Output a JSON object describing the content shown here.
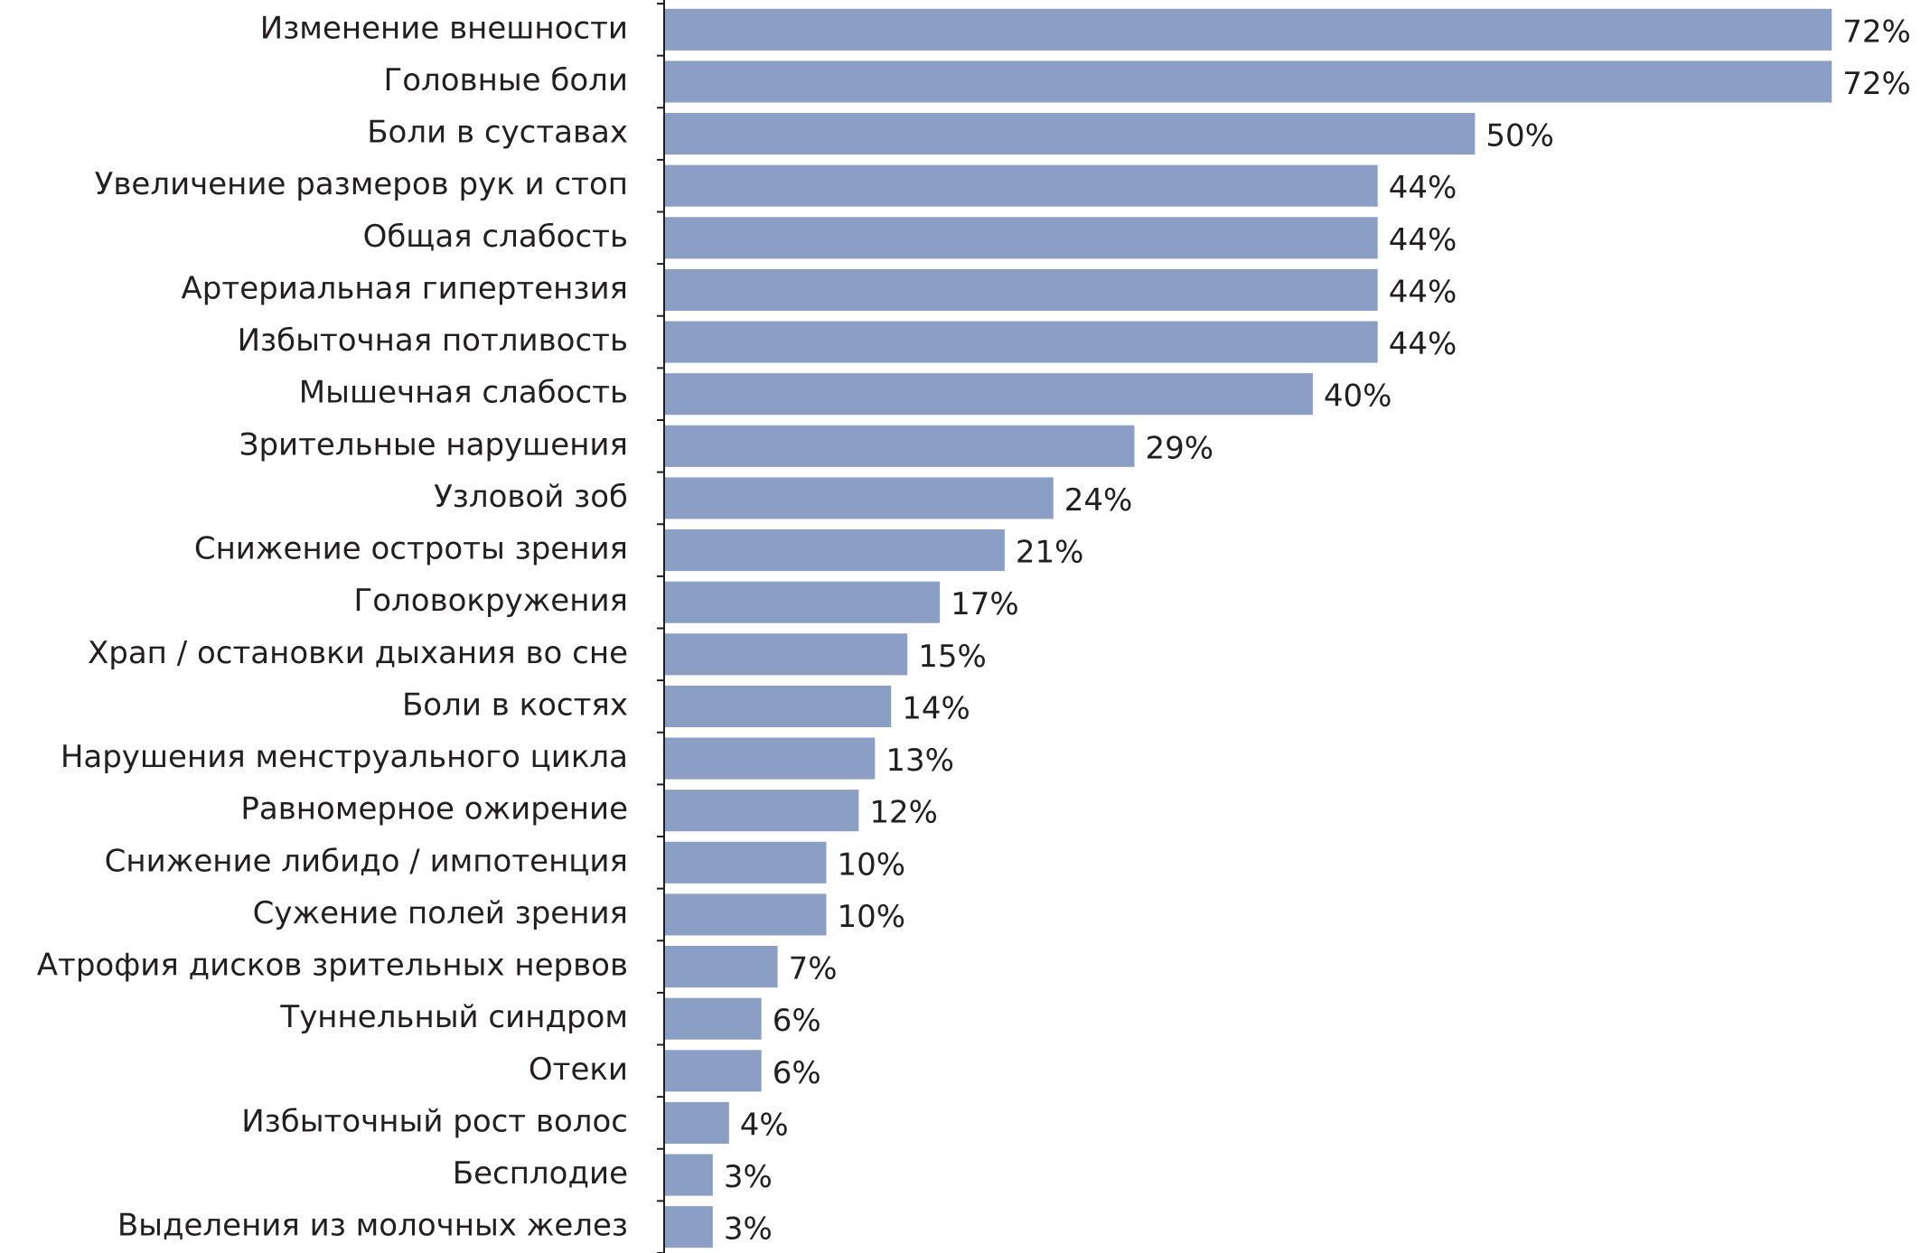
{
  "chart_data": {
    "type": "barh",
    "categories": [
      "Изменение внешности",
      "Головные боли",
      "Боли в суставах",
      "Увеличение размеров рук и стоп",
      "Общая слабость",
      "Артериальная гипертензия",
      "Избыточная потливость",
      "Мышечная слабость",
      "Зрительные нарушения",
      "Узловой зоб",
      "Снижение остроты зрения",
      "Головокружения",
      "Храп / остановки дыхания во сне",
      "Боли в костях",
      "Нарушения менструального цикла",
      "Равномерное ожирение",
      "Снижение либидо / импотенция",
      "Сужение полей зрения",
      "Атрофия дисков зрительных нервов",
      "Туннельный синдром",
      "Отеки",
      "Избыточный рост волос",
      "Бесплодие",
      "Выделения из молочных желез"
    ],
    "values": [
      72,
      72,
      50,
      44,
      44,
      44,
      44,
      40,
      29,
      24,
      21,
      17,
      15,
      14,
      13,
      12,
      10,
      10,
      7,
      6,
      6,
      4,
      3,
      3
    ],
    "value_labels": [
      "72%",
      "72%",
      "50%",
      "44%",
      "44%",
      "44%",
      "44%",
      "40%",
      "29%",
      "24%",
      "21%",
      "17%",
      "15%",
      "14%",
      "13%",
      "12%",
      "10%",
      "10%",
      "7%",
      "6%",
      "6%",
      "4%",
      "3%",
      "3%"
    ],
    "color": "#8b9fc5",
    "xlim": [
      0,
      77
    ]
  }
}
